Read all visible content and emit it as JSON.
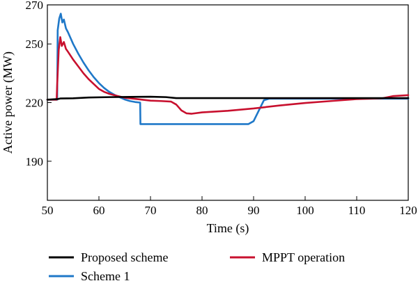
{
  "chart_data": {
    "type": "line",
    "title": "",
    "xlabel": "Time (s)",
    "ylabel": "Active power (MW)",
    "xlim": [
      50,
      120
    ],
    "ylim": [
      170,
      270
    ],
    "xticks": [
      50,
      60,
      70,
      80,
      90,
      100,
      110,
      120
    ],
    "yticks": [
      190,
      220,
      250,
      270
    ],
    "grid": false,
    "legend_placement": "bottom",
    "series": [
      {
        "name": "Proposed scheme",
        "color": "#000000",
        "x": [
          50,
          52,
          52.5,
          55,
          58,
          62,
          66,
          70,
          73,
          75,
          80,
          90,
          95,
          100,
          110,
          120
        ],
        "y": [
          221.5,
          221.8,
          222.1,
          222.2,
          222.6,
          222.8,
          222.9,
          223,
          222.8,
          222.3,
          222.3,
          222.3,
          222.3,
          222.3,
          222.3,
          222.3
        ]
      },
      {
        "name": "Scheme 1",
        "color": "#1f78c8",
        "x": [
          50,
          51.9,
          52,
          52.3,
          52.6,
          52.9,
          53.2,
          53.6,
          54,
          55,
          56,
          57,
          58,
          59,
          60,
          61,
          62,
          63,
          64,
          65,
          66,
          67,
          68,
          68.05,
          70,
          80,
          89,
          90,
          92,
          93,
          100,
          110,
          120
        ],
        "y": [
          221.5,
          221.5,
          257,
          263,
          265.5,
          261,
          262.5,
          258,
          256,
          250,
          245,
          240.5,
          236.5,
          233,
          230,
          227.5,
          225.5,
          224,
          222.8,
          221.6,
          220.8,
          220.3,
          220,
          209,
          209,
          209,
          209,
          210.5,
          221.2,
          222,
          222,
          222,
          222
        ]
      },
      {
        "name": "MPPT operation",
        "color": "#c8102e",
        "x": [
          50,
          51.8,
          51.9,
          52.2,
          52.5,
          52.8,
          53.2,
          53.6,
          54,
          55,
          56,
          57,
          58,
          59,
          60,
          61,
          62,
          63,
          65,
          70,
          72,
          74,
          75,
          76,
          77,
          78,
          80,
          85,
          90,
          95,
          100,
          105,
          110,
          115,
          117,
          120
        ],
        "y": [
          221.5,
          221.5,
          229,
          247,
          253.5,
          249,
          251,
          247.5,
          246,
          242,
          238.5,
          235,
          232,
          229.5,
          227,
          225.5,
          224.5,
          223.8,
          222.5,
          221,
          220.8,
          220.5,
          219,
          216,
          214.5,
          214.3,
          215,
          215.8,
          217,
          218.5,
          219.8,
          220.8,
          221.8,
          222.2,
          223.3,
          223.8
        ]
      }
    ]
  }
}
